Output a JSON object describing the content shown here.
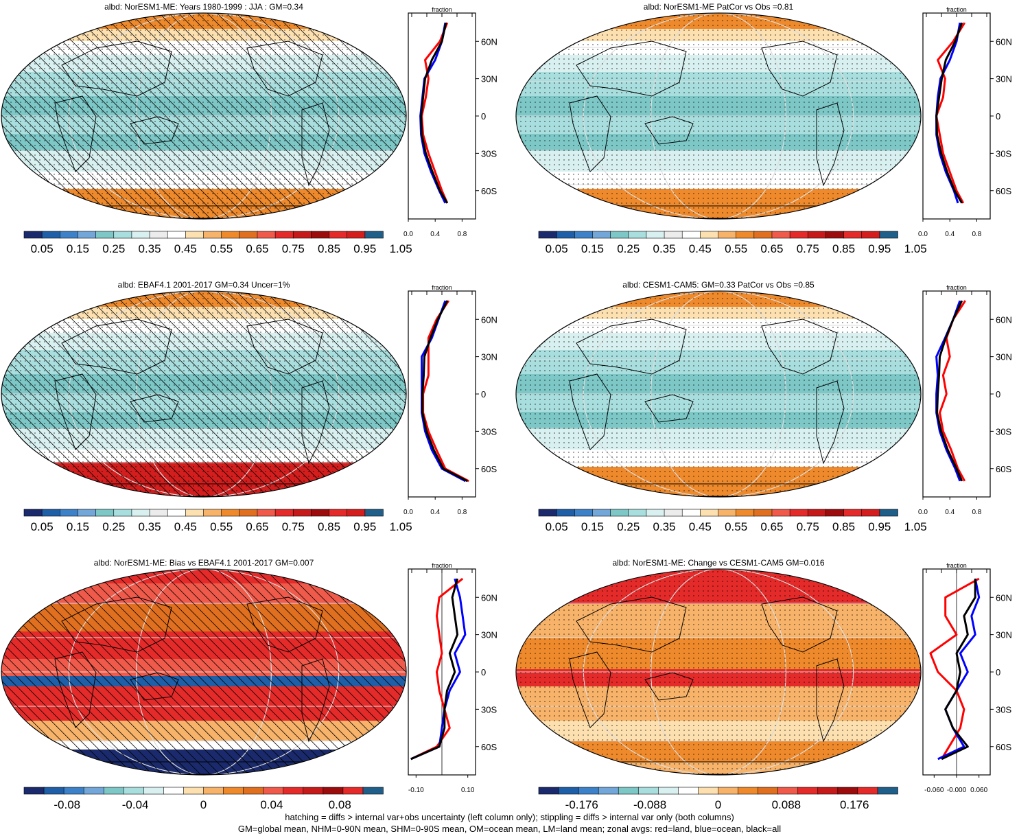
{
  "panels": [
    {
      "id": "p1",
      "title": "albd: NorESM1-ME: Years 1980-1999 : JJA : GM=0.34",
      "map": {
        "hatch": true,
        "stipple": true,
        "palette": "abs"
      },
      "zonal": {
        "top_label": "fraction",
        "xticks": [
          "0.0",
          "0.4",
          "0.8"
        ],
        "xlim": [
          0,
          1.0
        ],
        "zero_line": false
      },
      "colorbar": {
        "labels": [
          "0.05",
          "0.15",
          "0.25",
          "0.35",
          "0.45",
          "0.55",
          "0.65",
          "0.75",
          "0.85",
          "0.95",
          "1.05"
        ]
      }
    },
    {
      "id": "p2",
      "title": "albd: NorESM1-ME PatCor vs Obs =0.81",
      "map": {
        "hatch": false,
        "stipple": true,
        "palette": "abs"
      },
      "zonal": {
        "top_label": "fraction",
        "xticks": [
          "0.0",
          "0.4",
          "0.8"
        ],
        "xlim": [
          0,
          1.0
        ],
        "zero_line": false
      },
      "colorbar": {
        "labels": [
          "0.05",
          "0.15",
          "0.25",
          "0.35",
          "0.45",
          "0.55",
          "0.65",
          "0.75",
          "0.85",
          "0.95",
          "1.05"
        ]
      }
    },
    {
      "id": "p3",
      "title": "albd: EBAF4.1 2001-2017 GM=0.34 Uncer=1%",
      "map": {
        "hatch": true,
        "stipple": true,
        "palette": "abs"
      },
      "zonal": {
        "top_label": "fraction",
        "xticks": [
          "0.0",
          "0.4",
          "0.8"
        ],
        "xlim": [
          0,
          1.0
        ],
        "zero_line": false
      },
      "colorbar": {
        "labels": [
          "0.05",
          "0.15",
          "0.25",
          "0.35",
          "0.45",
          "0.55",
          "0.65",
          "0.75",
          "0.85",
          "0.95",
          "1.05"
        ]
      }
    },
    {
      "id": "p4",
      "title": "albd: CESM1-CAM5: GM=0.33 PatCor vs Obs =0.85",
      "map": {
        "hatch": false,
        "stipple": true,
        "palette": "abs"
      },
      "zonal": {
        "top_label": "fraction",
        "xticks": [
          "0.0",
          "0.4",
          "0.8"
        ],
        "xlim": [
          0,
          1.0
        ],
        "zero_line": false
      },
      "colorbar": {
        "labels": [
          "0.05",
          "0.15",
          "0.25",
          "0.35",
          "0.45",
          "0.55",
          "0.65",
          "0.75",
          "0.85",
          "0.95",
          "1.05"
        ]
      }
    },
    {
      "id": "p5",
      "title": "albd: NorESM1-ME: Bias vs EBAF4.1 2001-2017 GM=0.007",
      "map": {
        "hatch": true,
        "stipple": false,
        "palette": "bias"
      },
      "zonal": {
        "top_label": "fraction",
        "xticks": [
          "-0.10",
          "0.10"
        ],
        "xlim": [
          -0.13,
          0.13
        ],
        "zero_line": true
      },
      "colorbar": {
        "labels": [
          "-0.08",
          "-0.04",
          "0",
          "0.04",
          "0.08"
        ]
      }
    },
    {
      "id": "p6",
      "title": "albd: NorESM1-ME: Change vs CESM1-CAM5 GM=0.016",
      "map": {
        "hatch": false,
        "stipple": true,
        "palette": "change"
      },
      "zonal": {
        "top_label": "fraction",
        "xticks": [
          "-0.060",
          "-0.000",
          "0.060"
        ],
        "xlim": [
          -0.09,
          0.09
        ],
        "zero_line": true
      },
      "colorbar": {
        "labels": [
          "-0.176",
          "-0.088",
          "0",
          "0.088",
          "0.176"
        ]
      }
    }
  ],
  "lat_ticks": [
    "60N",
    "30N",
    "0",
    "30S",
    "60S"
  ],
  "chart_data": [
    {
      "type": "line",
      "title": "albd: NorESM1-ME: Years 1980-1999 : JJA : GM=0.34",
      "xlabel": "fraction",
      "y_axis": "latitude",
      "ylim": [
        -80,
        80
      ],
      "latitudes": [
        75,
        60,
        45,
        30,
        15,
        0,
        -15,
        -30,
        -45,
        -60,
        -70
      ],
      "series": [
        {
          "name": "land",
          "color": "#ff0000",
          "values": [
            0.58,
            0.47,
            0.25,
            0.3,
            0.26,
            0.2,
            0.22,
            0.3,
            0.4,
            0.5,
            0.58
          ]
        },
        {
          "name": "ocean",
          "color": "#0000ff",
          "values": [
            0.55,
            0.5,
            0.4,
            0.24,
            0.21,
            0.18,
            0.19,
            0.24,
            0.34,
            0.46,
            0.55
          ]
        },
        {
          "name": "all",
          "color": "#000000",
          "values": [
            0.56,
            0.5,
            0.35,
            0.25,
            0.22,
            0.19,
            0.2,
            0.26,
            0.36,
            0.47,
            0.58
          ]
        }
      ]
    },
    {
      "type": "line",
      "title": "albd: NorESM1-ME PatCor vs Obs =0.81",
      "xlabel": "fraction",
      "y_axis": "latitude",
      "ylim": [
        -80,
        80
      ],
      "latitudes": [
        75,
        60,
        45,
        30,
        15,
        0,
        -15,
        -30,
        -45,
        -60,
        -70
      ],
      "series": [
        {
          "name": "land",
          "color": "#ff0000",
          "values": [
            0.62,
            0.45,
            0.22,
            0.33,
            0.3,
            0.2,
            0.25,
            0.3,
            0.4,
            0.5,
            0.6
          ]
        },
        {
          "name": "ocean",
          "color": "#0000ff",
          "values": [
            0.55,
            0.5,
            0.4,
            0.26,
            0.22,
            0.2,
            0.2,
            0.25,
            0.34,
            0.46,
            0.52
          ]
        },
        {
          "name": "all",
          "color": "#000000",
          "values": [
            0.58,
            0.48,
            0.34,
            0.28,
            0.24,
            0.2,
            0.21,
            0.27,
            0.36,
            0.47,
            0.58
          ]
        }
      ]
    },
    {
      "type": "line",
      "title": "albd: EBAF4.1 2001-2017 GM=0.34 Uncer=1%",
      "xlabel": "fraction",
      "y_axis": "latitude",
      "ylim": [
        -80,
        80
      ],
      "latitudes": [
        75,
        60,
        45,
        30,
        15,
        0,
        -15,
        -30,
        -45,
        -60,
        -70
      ],
      "series": [
        {
          "name": "land",
          "color": "#ff0000",
          "values": [
            0.6,
            0.42,
            0.3,
            0.3,
            0.3,
            0.22,
            0.22,
            0.3,
            0.42,
            0.55,
            0.9
          ]
        },
        {
          "name": "ocean",
          "color": "#0000ff",
          "values": [
            0.55,
            0.45,
            0.35,
            0.2,
            0.2,
            0.2,
            0.2,
            0.25,
            0.35,
            0.5,
            0.85
          ]
        },
        {
          "name": "all",
          "color": "#000000",
          "values": [
            0.58,
            0.44,
            0.33,
            0.24,
            0.23,
            0.21,
            0.21,
            0.27,
            0.38,
            0.52,
            0.88
          ]
        }
      ]
    },
    {
      "type": "line",
      "title": "albd: CESM1-CAM5: GM=0.33 PatCor vs Obs =0.85",
      "xlabel": "fraction",
      "y_axis": "latitude",
      "ylim": [
        -80,
        80
      ],
      "latitudes": [
        75,
        60,
        45,
        30,
        15,
        0,
        -15,
        -30,
        -45,
        -60,
        -70
      ],
      "series": [
        {
          "name": "land",
          "color": "#ff0000",
          "values": [
            0.63,
            0.45,
            0.35,
            0.4,
            0.3,
            0.35,
            0.25,
            0.3,
            0.42,
            0.52,
            0.62
          ]
        },
        {
          "name": "ocean",
          "color": "#0000ff",
          "values": [
            0.55,
            0.45,
            0.33,
            0.2,
            0.22,
            0.2,
            0.2,
            0.25,
            0.35,
            0.48,
            0.55
          ]
        },
        {
          "name": "all",
          "color": "#000000",
          "values": [
            0.58,
            0.45,
            0.34,
            0.25,
            0.24,
            0.22,
            0.21,
            0.27,
            0.37,
            0.5,
            0.58
          ]
        }
      ]
    },
    {
      "type": "line",
      "title": "albd: NorESM1-ME: Bias vs EBAF4.1 2001-2017 GM=0.007",
      "xlabel": "fraction",
      "y_axis": "latitude",
      "ylim": [
        -80,
        80
      ],
      "latitudes": [
        75,
        60,
        45,
        30,
        15,
        0,
        -15,
        -30,
        -45,
        -60,
        -70
      ],
      "series": [
        {
          "name": "land",
          "color": "#ff0000",
          "values": [
            0.08,
            -0.01,
            -0.02,
            -0.01,
            0.0,
            -0.02,
            -0.01,
            0.01,
            0.03,
            -0.02,
            -0.12
          ]
        },
        {
          "name": "ocean",
          "color": "#0000ff",
          "values": [
            0.05,
            0.07,
            0.08,
            0.09,
            0.05,
            0.07,
            0.03,
            0.01,
            0.0,
            -0.01,
            -0.12
          ]
        },
        {
          "name": "all",
          "color": "#000000",
          "values": [
            0.06,
            0.04,
            0.05,
            0.06,
            0.03,
            0.05,
            0.02,
            0.01,
            0.01,
            -0.01,
            -0.12
          ]
        }
      ]
    },
    {
      "type": "line",
      "title": "albd: NorESM1-ME: Change vs CESM1-CAM5 GM=0.016",
      "xlabel": "fraction",
      "y_axis": "latitude",
      "ylim": [
        -80,
        80
      ],
      "latitudes": [
        75,
        60,
        45,
        30,
        15,
        0,
        -15,
        -30,
        -45,
        -60,
        -70
      ],
      "series": [
        {
          "name": "land",
          "color": "#ff0000",
          "values": [
            0.06,
            -0.03,
            -0.03,
            0.0,
            -0.07,
            -0.05,
            0.0,
            0.02,
            0.01,
            -0.02,
            -0.04
          ]
        },
        {
          "name": "ocean",
          "color": "#0000ff",
          "values": [
            0.05,
            0.06,
            0.04,
            0.05,
            0.01,
            0.03,
            0.0,
            -0.03,
            -0.01,
            0.02,
            -0.05
          ]
        },
        {
          "name": "all",
          "color": "#000000",
          "values": [
            0.05,
            0.05,
            0.02,
            0.03,
            0.0,
            0.01,
            0.0,
            -0.03,
            -0.01,
            0.03,
            -0.04
          ]
        }
      ]
    }
  ],
  "footer": {
    "line1": "hatching = diffs > internal var+obs uncertainty (left column only); stippling = diffs > internal var only (both columns)",
    "line2": "GM=global mean, NHM=0-90N mean, SHM=0-90S mean, OM=ocean mean, LM=land mean; zonal avgs: red=land, blue=ocean, black=all"
  },
  "colors": {
    "abs_palette": [
      "#1a2a6c",
      "#1f5fa8",
      "#3d82c8",
      "#73a7d9",
      "#7dc7c7",
      "#a9dede",
      "#d8f0f0",
      "#ececec",
      "#ffffff",
      "#fde0b0",
      "#f8b36a",
      "#ef8a2c",
      "#e0701f",
      "#f05a4a",
      "#e52a2a",
      "#c61a1a",
      "#9c0c0c",
      "#e52a2a",
      "#d41e1e",
      "#1f5f8a"
    ],
    "bias_palette": [
      "#1a2a6c",
      "#1f5fa8",
      "#3d82c8",
      "#73a7d9",
      "#7dc7c7",
      "#a9dede",
      "#d8f0f0",
      "#ffffff",
      "#fde0b0",
      "#f8b36a",
      "#ef8a2c",
      "#e0701f",
      "#f05a4a",
      "#e52a2a",
      "#c61a1a",
      "#9c0c0c",
      "#e52a2a",
      "#1f5f8a"
    ],
    "land": "#ff0000",
    "ocean": "#0000ff",
    "all": "#000000"
  }
}
